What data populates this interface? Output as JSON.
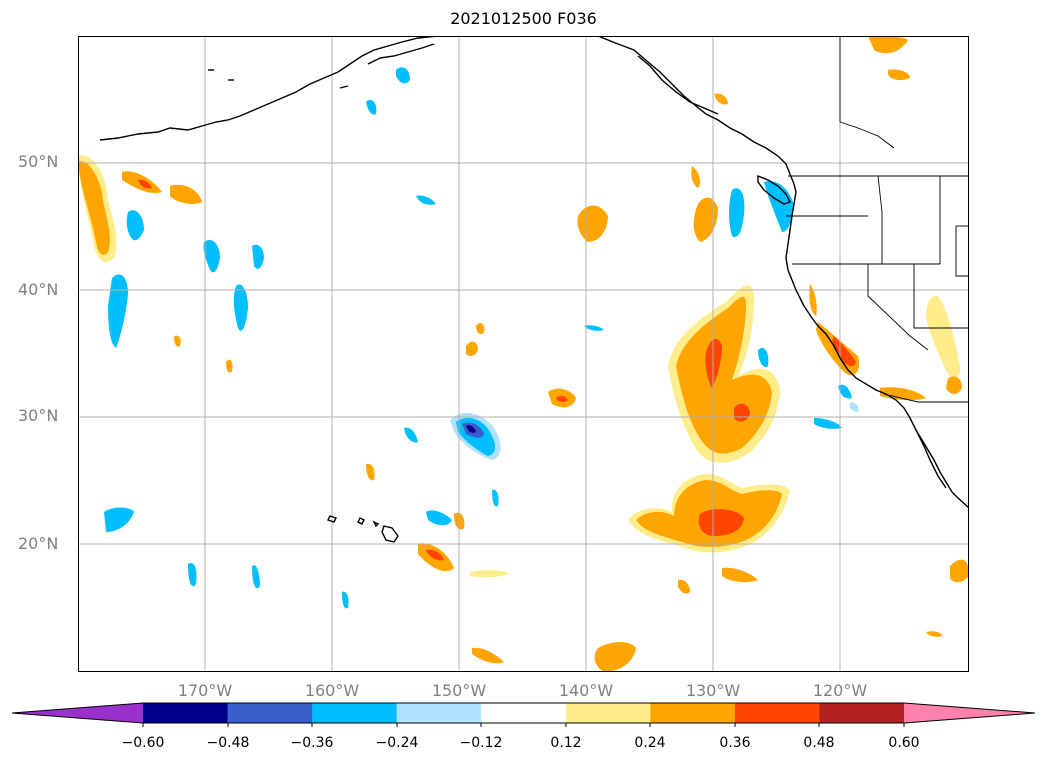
{
  "title": "2021012500 F036",
  "latitude_labels": [
    "50°N",
    "40°N",
    "30°N",
    "20°N"
  ],
  "longitude_labels": [
    "170°W",
    "160°W",
    "150°W",
    "140°W",
    "130°W",
    "120°W"
  ],
  "colorbar": {
    "ticks": [
      "−0.60",
      "−0.48",
      "−0.36",
      "−0.24",
      "−0.12",
      "0.12",
      "0.24",
      "0.36",
      "0.48",
      "0.60"
    ],
    "colors": [
      "#9932cc",
      "#00008b",
      "#3a5fcd",
      "#00bfff",
      "#b0e2ff",
      "#ffffff",
      "#ffec8b",
      "#ffa500",
      "#ff4500",
      "#b22222",
      "#ff82ab"
    ]
  },
  "chart_data": {
    "type": "contour_map",
    "title": "2021012500 F036",
    "lon_range": [
      -180,
      -110
    ],
    "lat_range": [
      10,
      60
    ],
    "levels": [
      -0.6,
      -0.48,
      -0.36,
      -0.24,
      -0.12,
      0.12,
      0.24,
      0.36,
      0.48,
      0.6
    ],
    "grid": true,
    "colorbar_position": "bottom"
  }
}
